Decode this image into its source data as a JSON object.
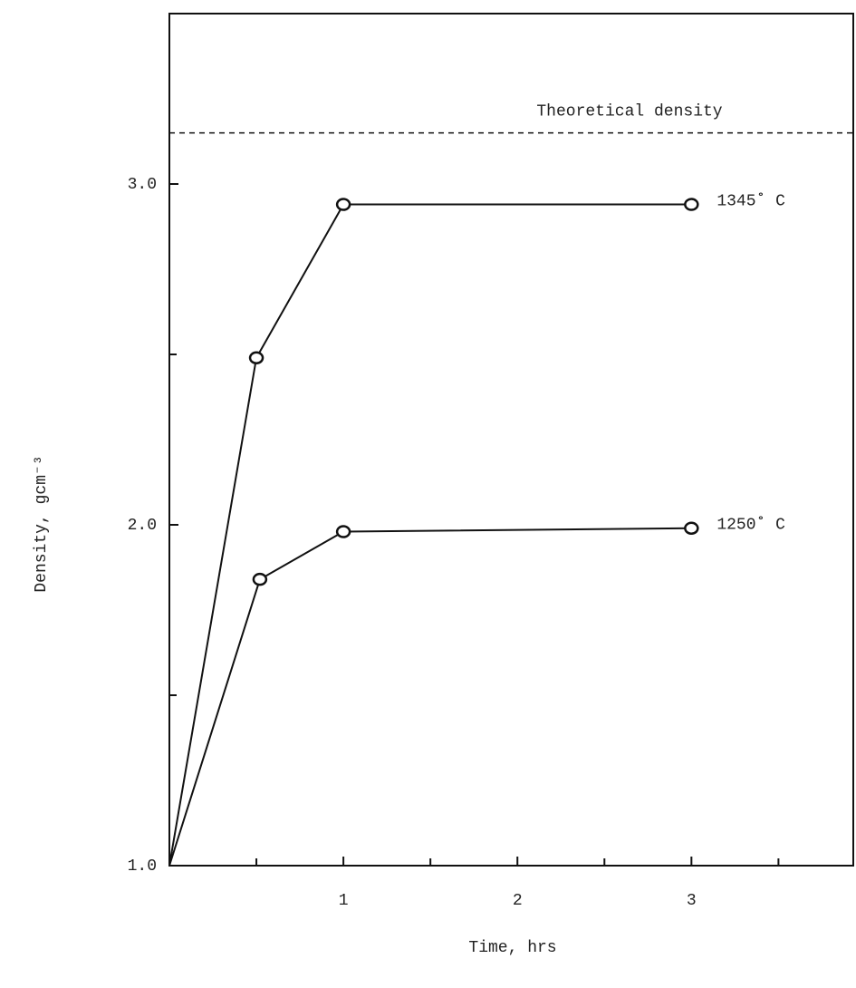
{
  "chart_data": {
    "type": "line",
    "x_label": "Time, hrs",
    "y_label": "Density, gcm⁻³",
    "annotation": "Theoretical density",
    "reference_line": 3.15,
    "series": [
      {
        "name": "1345˚ C",
        "color": "#111111",
        "x": [
          0,
          0.5,
          1,
          3
        ],
        "values": [
          1.0,
          2.49,
          2.94,
          2.94
        ]
      },
      {
        "name": "1250˚ C",
        "color": "#111111",
        "x": [
          0,
          0.52,
          1,
          3
        ],
        "values": [
          1.0,
          1.84,
          1.98,
          1.99
        ]
      }
    ],
    "xlim": [
      0,
      3.93
    ],
    "ylim": [
      1,
      3.5
    ],
    "xticks": [
      1,
      2,
      3
    ],
    "xminorticks": [
      0.5,
      1.5,
      2.5,
      3.5
    ],
    "yticks": [
      {
        "value": 1,
        "label": "1.0"
      },
      {
        "value": 2,
        "label": "2.0"
      },
      {
        "value": 3,
        "label": "3.0"
      }
    ],
    "yminorticks": [
      1.5,
      2.5
    ],
    "grid": false
  }
}
